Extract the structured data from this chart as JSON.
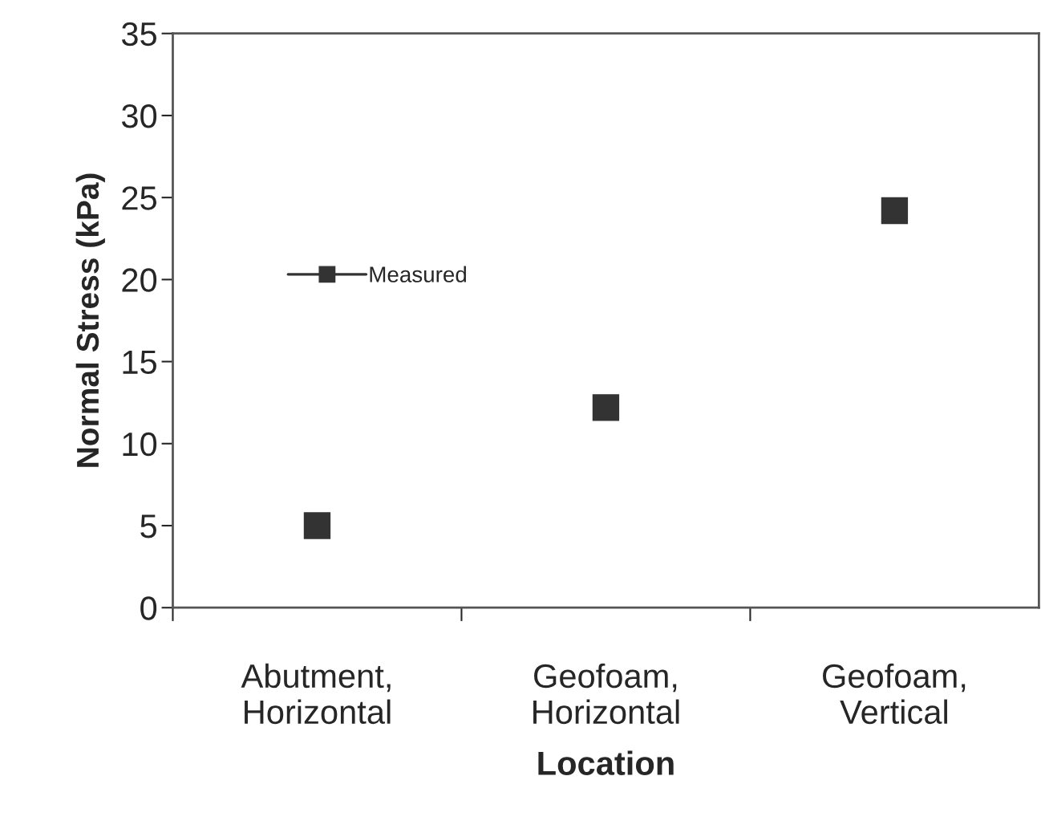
{
  "chart_data": {
    "type": "scatter",
    "xlabel": "Location",
    "ylabel": "Normal Stress (kPa)",
    "categories": [
      "Abutment,\nHorizontal",
      "Geofoam,\nHorizontal",
      "Geofoam,\nVertical"
    ],
    "series": [
      {
        "name": "Measured",
        "color": "#333333",
        "values": [
          5.0,
          12.2,
          24.2
        ]
      }
    ],
    "ylim": [
      0,
      35
    ],
    "yticks": [
      0,
      5,
      10,
      15,
      20,
      25,
      30,
      35
    ],
    "marker": "square",
    "legend": "top left",
    "grid": false
  }
}
